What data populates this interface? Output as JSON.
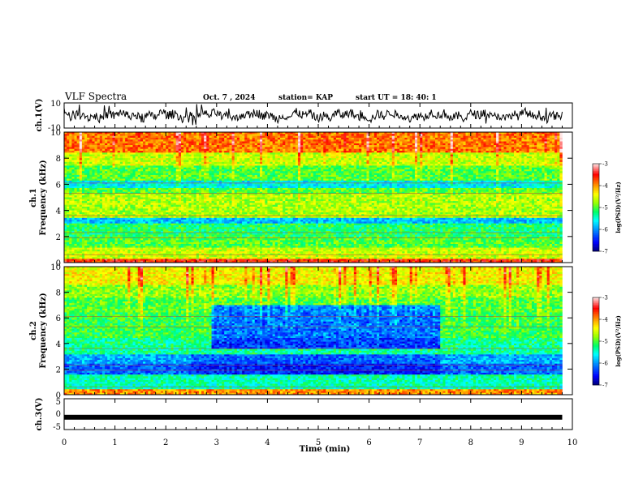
{
  "header": {
    "title": "VLF Spectra",
    "date": "Oct. 7 , 2024",
    "station": "station= KAP",
    "start": "start UT =  18: 40: 1"
  },
  "chart_data": [
    {
      "type": "line",
      "panel": "ch1-waveform",
      "ylabel": "ch.1(V)",
      "ylim": [
        -10,
        10
      ],
      "yticks": [
        "10",
        "-10"
      ],
      "x_range_min": [
        0,
        9.8
      ],
      "note_values": "noisy waveform, amplitude about ±5 V with spikes to ±10"
    },
    {
      "type": "heatmap",
      "panel": "ch1-spectrogram",
      "ylabel": "ch.1\nFrequency (kHz)",
      "ylabel_line1": "ch.1",
      "ylabel_line2": "Frequency (kHz)",
      "ylim": [
        0,
        10
      ],
      "yticks": [
        "0",
        "2",
        "4",
        "6",
        "8",
        "10"
      ],
      "x_range_min": [
        0,
        9.8
      ],
      "colorbar": {
        "label": "log(PSD)(V²/Hz)",
        "min": -7,
        "max": -3,
        "ticks": [
          "-3",
          "-4",
          "-5",
          "-6",
          "-7"
        ]
      }
    },
    {
      "type": "heatmap",
      "panel": "ch2-spectrogram",
      "ylabel_line1": "ch.2",
      "ylabel_line2": "Frequency (kHz)",
      "ylim": [
        0,
        10
      ],
      "yticks": [
        "0",
        "2",
        "4",
        "6",
        "8",
        "10"
      ],
      "x_range_min": [
        0,
        9.8
      ],
      "feature": "low-PSD band 3.5–7 kHz from 2.9 to 7.4 min",
      "colorbar": {
        "label": "log(PSD)(V²/Hz)",
        "min": -7,
        "max": -3,
        "ticks": [
          "-3",
          "-4",
          "-5",
          "-6",
          "-7"
        ]
      }
    },
    {
      "type": "line",
      "panel": "ch3-waveform",
      "ylabel": "ch.3(V)",
      "ylim": [
        -5,
        5
      ],
      "yticks": [
        "5",
        "0",
        "-5"
      ],
      "value_constant": -1,
      "x_range_min": [
        0,
        9.8
      ]
    }
  ],
  "xaxis": {
    "label": "Time (min)",
    "xlim": [
      0,
      10
    ],
    "ticks": [
      "0",
      "1",
      "2",
      "3",
      "4",
      "5",
      "6",
      "7",
      "8",
      "9",
      "10"
    ]
  },
  "colors": {
    "scale": [
      "#000080",
      "#0000ff",
      "#00a0ff",
      "#00ffff",
      "#00ff60",
      "#a0ff00",
      "#ffff00",
      "#ff9000",
      "#ff0000",
      "#ffffff"
    ]
  }
}
